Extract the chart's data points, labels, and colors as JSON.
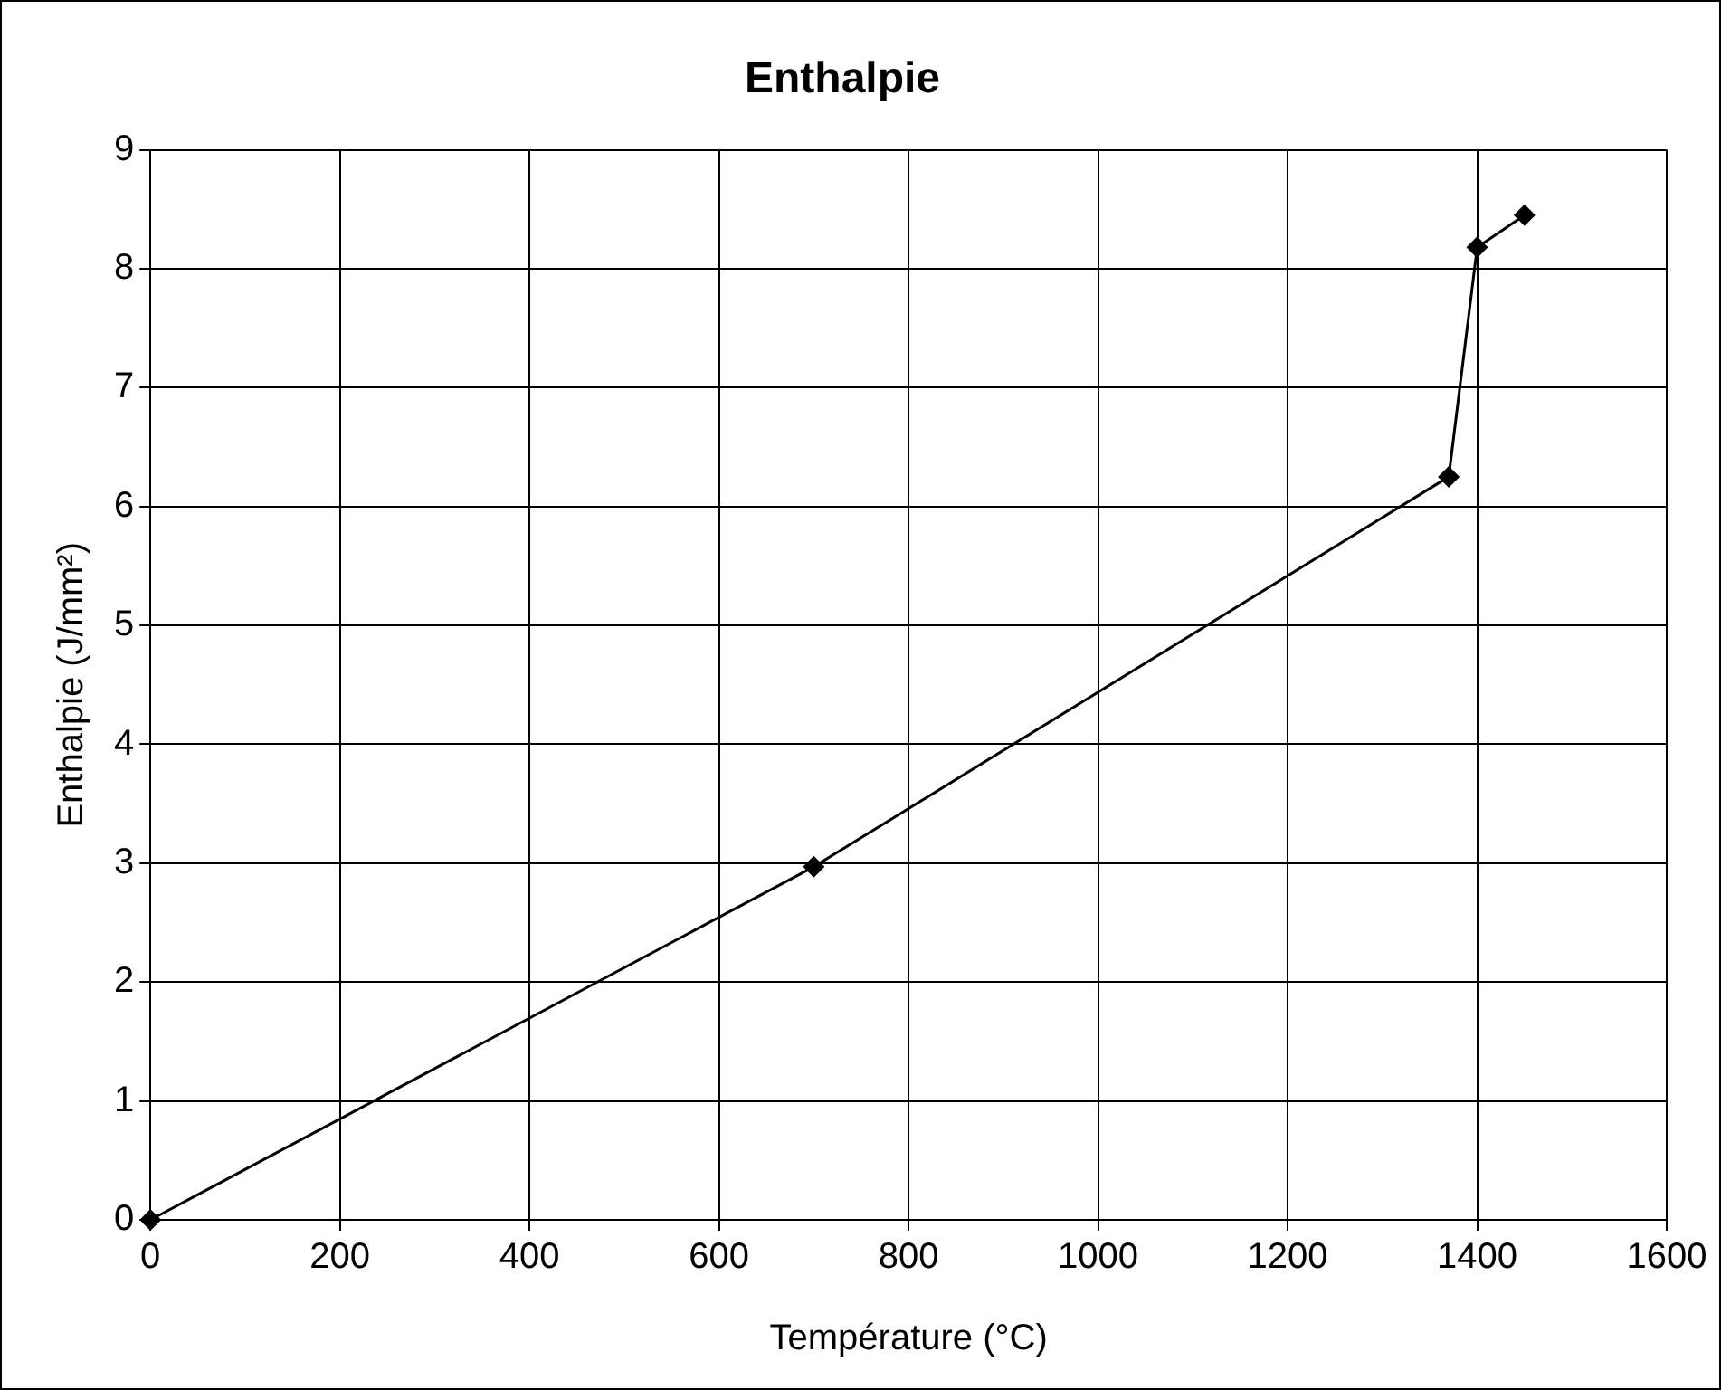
{
  "chart_data": {
    "type": "line",
    "title": "Enthalpie",
    "xlabel": "Température (°C)",
    "ylabel": "Enthalpie (J/mm²)",
    "x": [
      0,
      700,
      1370,
      1400,
      1450
    ],
    "series": [
      {
        "color": "#000000",
        "values": [
          0,
          2.97,
          6.25,
          8.18,
          8.45
        ]
      }
    ],
    "xlim": [
      0,
      1600
    ],
    "xticks": [
      0,
      200,
      400,
      600,
      800,
      1000,
      1200,
      1400,
      1600
    ],
    "ylim": [
      0,
      9
    ],
    "yticks": [
      0,
      1,
      2,
      3,
      4,
      5,
      6,
      7,
      8,
      9
    ],
    "grid": true,
    "legend": false,
    "marker": "diamond",
    "line_style": "solid"
  }
}
